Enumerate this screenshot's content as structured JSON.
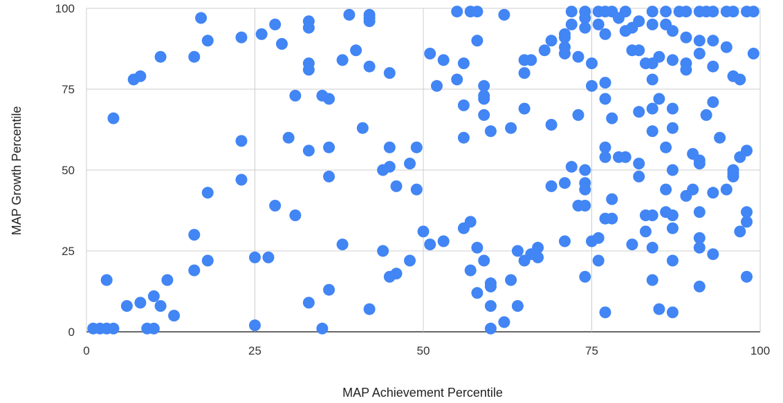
{
  "chart_data": {
    "type": "scatter",
    "title": "",
    "xlabel": "MAP Achievement Percentile",
    "ylabel": "MAP Growth Percentile",
    "xlim": [
      0,
      100
    ],
    "ylim": [
      0,
      100
    ],
    "x_ticks": [
      "0",
      "25",
      "50",
      "75",
      "100"
    ],
    "y_ticks": [
      "0",
      "25",
      "50",
      "75",
      "100"
    ],
    "grid": true,
    "legend": "none",
    "marker_color": "#4285f4",
    "series": [
      {
        "points": [
          [
            1,
            1
          ],
          [
            2,
            1
          ],
          [
            3,
            1
          ],
          [
            4,
            1
          ],
          [
            3,
            16
          ],
          [
            4,
            66
          ],
          [
            6,
            8
          ],
          [
            7,
            78
          ],
          [
            8,
            79
          ],
          [
            8,
            9
          ],
          [
            9,
            1
          ],
          [
            10,
            1
          ],
          [
            10,
            11
          ],
          [
            11,
            8
          ],
          [
            11,
            85
          ],
          [
            12,
            16
          ],
          [
            13,
            5
          ],
          [
            16,
            85
          ],
          [
            16,
            30
          ],
          [
            16,
            19
          ],
          [
            17,
            97
          ],
          [
            18,
            90
          ],
          [
            18,
            43
          ],
          [
            18,
            22
          ],
          [
            23,
            91
          ],
          [
            23,
            59
          ],
          [
            23,
            47
          ],
          [
            25,
            23
          ],
          [
            25,
            2
          ],
          [
            26,
            92
          ],
          [
            27,
            23
          ],
          [
            28,
            95
          ],
          [
            28,
            39
          ],
          [
            29,
            89
          ],
          [
            30,
            60
          ],
          [
            31,
            73
          ],
          [
            31,
            36
          ],
          [
            33,
            96
          ],
          [
            33,
            94
          ],
          [
            33,
            83
          ],
          [
            33,
            81
          ],
          [
            33,
            56
          ],
          [
            33,
            9
          ],
          [
            35,
            73
          ],
          [
            35,
            1
          ],
          [
            36,
            72
          ],
          [
            36,
            57
          ],
          [
            36,
            48
          ],
          [
            36,
            13
          ],
          [
            38,
            84
          ],
          [
            38,
            27
          ],
          [
            39,
            98
          ],
          [
            40,
            87
          ],
          [
            41,
            63
          ],
          [
            42,
            98
          ],
          [
            42,
            97
          ],
          [
            42,
            96
          ],
          [
            42,
            82
          ],
          [
            42,
            7
          ],
          [
            44,
            50
          ],
          [
            44,
            25
          ],
          [
            45,
            80
          ],
          [
            45,
            57
          ],
          [
            45,
            51
          ],
          [
            45,
            17
          ],
          [
            46,
            45
          ],
          [
            46,
            18
          ],
          [
            48,
            52
          ],
          [
            48,
            22
          ],
          [
            49,
            57
          ],
          [
            49,
            44
          ],
          [
            50,
            31
          ],
          [
            51,
            86
          ],
          [
            51,
            27
          ],
          [
            52,
            76
          ],
          [
            53,
            84
          ],
          [
            53,
            28
          ],
          [
            55,
            99
          ],
          [
            55,
            78
          ],
          [
            56,
            83
          ],
          [
            56,
            70
          ],
          [
            56,
            60
          ],
          [
            56,
            32
          ],
          [
            57,
            99
          ],
          [
            57,
            34
          ],
          [
            57,
            19
          ],
          [
            58,
            99
          ],
          [
            58,
            90
          ],
          [
            58,
            26
          ],
          [
            58,
            12
          ],
          [
            59,
            76
          ],
          [
            59,
            73
          ],
          [
            59,
            72
          ],
          [
            59,
            67
          ],
          [
            59,
            22
          ],
          [
            60,
            62
          ],
          [
            60,
            15
          ],
          [
            60,
            14
          ],
          [
            60,
            8
          ],
          [
            60,
            1
          ],
          [
            62,
            98
          ],
          [
            62,
            3
          ],
          [
            63,
            63
          ],
          [
            63,
            16
          ],
          [
            64,
            25
          ],
          [
            64,
            8
          ],
          [
            65,
            84
          ],
          [
            65,
            80
          ],
          [
            65,
            69
          ],
          [
            65,
            22
          ],
          [
            66,
            84
          ],
          [
            66,
            24
          ],
          [
            67,
            26
          ],
          [
            67,
            23
          ],
          [
            68,
            87
          ],
          [
            69,
            90
          ],
          [
            69,
            64
          ],
          [
            69,
            45
          ],
          [
            71,
            92
          ],
          [
            71,
            91
          ],
          [
            71,
            88
          ],
          [
            71,
            86
          ],
          [
            71,
            46
          ],
          [
            71,
            28
          ],
          [
            72,
            99
          ],
          [
            72,
            95
          ],
          [
            72,
            51
          ],
          [
            73,
            85
          ],
          [
            73,
            67
          ],
          [
            73,
            39
          ],
          [
            74,
            99
          ],
          [
            74,
            97
          ],
          [
            74,
            94
          ],
          [
            74,
            50
          ],
          [
            74,
            46
          ],
          [
            74,
            44
          ],
          [
            74,
            39
          ],
          [
            74,
            17
          ],
          [
            75,
            83
          ],
          [
            75,
            76
          ],
          [
            75,
            28
          ],
          [
            76,
            99
          ],
          [
            76,
            95
          ],
          [
            76,
            29
          ],
          [
            76,
            22
          ],
          [
            77,
            99
          ],
          [
            77,
            92
          ],
          [
            77,
            77
          ],
          [
            77,
            72
          ],
          [
            77,
            57
          ],
          [
            77,
            54
          ],
          [
            77,
            35
          ],
          [
            77,
            6
          ],
          [
            78,
            99
          ],
          [
            78,
            66
          ],
          [
            78,
            41
          ],
          [
            78,
            35
          ],
          [
            79,
            97
          ],
          [
            79,
            54
          ],
          [
            80,
            99
          ],
          [
            80,
            93
          ],
          [
            80,
            54
          ],
          [
            81,
            94
          ],
          [
            81,
            87
          ],
          [
            81,
            27
          ],
          [
            82,
            96
          ],
          [
            82,
            87
          ],
          [
            82,
            68
          ],
          [
            82,
            52
          ],
          [
            82,
            48
          ],
          [
            83,
            83
          ],
          [
            83,
            36
          ],
          [
            83,
            31
          ],
          [
            84,
            99
          ],
          [
            84,
            95
          ],
          [
            84,
            83
          ],
          [
            84,
            78
          ],
          [
            84,
            69
          ],
          [
            84,
            62
          ],
          [
            84,
            36
          ],
          [
            84,
            26
          ],
          [
            84,
            16
          ],
          [
            85,
            85
          ],
          [
            85,
            72
          ],
          [
            85,
            7
          ],
          [
            86,
            99
          ],
          [
            86,
            95
          ],
          [
            86,
            57
          ],
          [
            86,
            44
          ],
          [
            86,
            37
          ],
          [
            87,
            93
          ],
          [
            87,
            84
          ],
          [
            87,
            69
          ],
          [
            87,
            63
          ],
          [
            87,
            50
          ],
          [
            87,
            36
          ],
          [
            87,
            32
          ],
          [
            87,
            22
          ],
          [
            87,
            6
          ],
          [
            88,
            99
          ],
          [
            89,
            99
          ],
          [
            89,
            91
          ],
          [
            89,
            83
          ],
          [
            89,
            81
          ],
          [
            89,
            42
          ],
          [
            90,
            55
          ],
          [
            90,
            44
          ],
          [
            91,
            99
          ],
          [
            91,
            90
          ],
          [
            91,
            86
          ],
          [
            91,
            53
          ],
          [
            91,
            52
          ],
          [
            91,
            37
          ],
          [
            91,
            29
          ],
          [
            91,
            26
          ],
          [
            91,
            14
          ],
          [
            92,
            99
          ],
          [
            92,
            67
          ],
          [
            93,
            99
          ],
          [
            93,
            90
          ],
          [
            93,
            82
          ],
          [
            93,
            71
          ],
          [
            93,
            43
          ],
          [
            93,
            24
          ],
          [
            94,
            60
          ],
          [
            95,
            99
          ],
          [
            95,
            88
          ],
          [
            95,
            44
          ],
          [
            96,
            99
          ],
          [
            96,
            79
          ],
          [
            96,
            50
          ],
          [
            96,
            49
          ],
          [
            96,
            48
          ],
          [
            97,
            78
          ],
          [
            97,
            54
          ],
          [
            97,
            31
          ],
          [
            98,
            99
          ],
          [
            98,
            56
          ],
          [
            98,
            37
          ],
          [
            98,
            34
          ],
          [
            98,
            17
          ],
          [
            99,
            99
          ],
          [
            99,
            86
          ]
        ]
      }
    ]
  }
}
